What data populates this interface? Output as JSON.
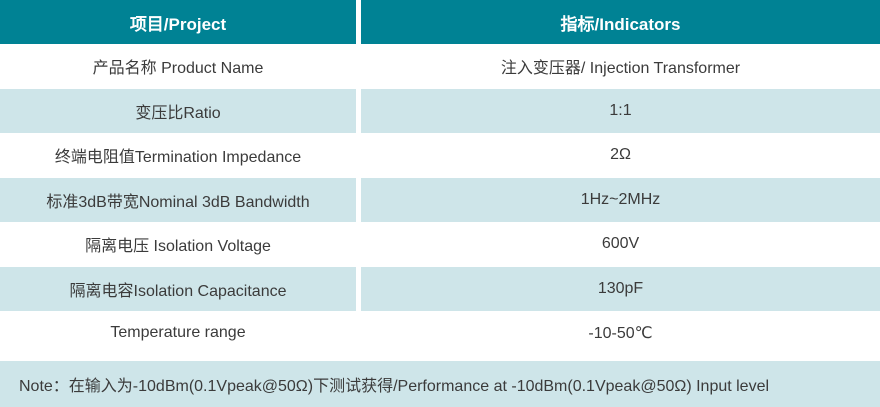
{
  "header": {
    "project": "项目/Project",
    "indicators": "指标/Indicators"
  },
  "table": {
    "rows": [
      {
        "project": "产品名称 Product Name",
        "indicator": "注入变压器/ Injection Transformer"
      },
      {
        "project": "变压比Ratio",
        "indicator": "1:1"
      },
      {
        "project": "终端电阻值Termination Impedance",
        "indicator": "2Ω"
      },
      {
        "project": "标准3dB带宽Nominal 3dB Bandwidth",
        "indicator": "1Hz~2MHz"
      },
      {
        "project": "隔离电压 Isolation Voltage",
        "indicator": "600V"
      },
      {
        "project": "隔离电容Isolation Capacitance",
        "indicator": "130pF"
      },
      {
        "project": "Temperature range",
        "indicator": "-10-50℃"
      }
    ]
  },
  "note": "Note：在输入为-10dBm(0.1Vpeak@50Ω)下测试获得/Performance at -10dBm(0.1Vpeak@50Ω) Input level",
  "colors": {
    "header_bg": "#008294",
    "header_text": "#ffffff",
    "row_alt_bg": "#cee5e9",
    "row_bg": "#ffffff",
    "note_bg": "#cee5e9",
    "body_text": "#3b3b3b"
  },
  "chart_data": {
    "type": "table",
    "columns": [
      "项目/Project",
      "指标/Indicators"
    ],
    "rows": [
      [
        "产品名称 Product Name",
        "注入变压器/ Injection Transformer"
      ],
      [
        "变压比Ratio",
        "1:1"
      ],
      [
        "终端电阻值Termination Impedance",
        "2Ω"
      ],
      [
        "标准3dB带宽Nominal 3dB Bandwidth",
        "1Hz~2MHz"
      ],
      [
        "隔离电压 Isolation Voltage",
        "600V"
      ],
      [
        "隔离电容Isolation Capacitance",
        "130pF"
      ],
      [
        "Temperature range",
        "-10-50℃"
      ]
    ],
    "note": "Note：在输入为-10dBm(0.1Vpeak@50Ω)下测试获得/Performance at -10dBm(0.1Vpeak@50Ω) Input level",
    "layout": {
      "header_style": "teal background, white bold text",
      "row_striping": "white / light-blue alternating starting with white",
      "note_position": "full-width bottom bar"
    }
  }
}
